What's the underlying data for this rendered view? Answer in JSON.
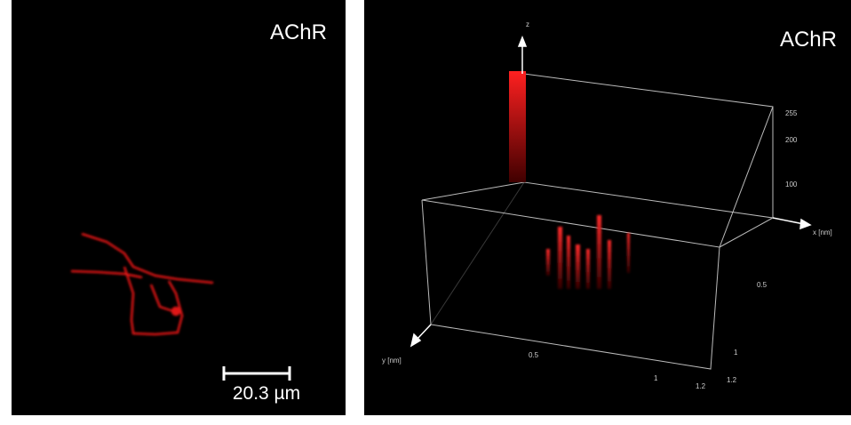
{
  "panels": [
    {
      "label": "AChR",
      "scale_bar": "20.3 µm"
    },
    {
      "label": "AChR",
      "axes": {
        "z_label": "z",
        "x_label": "x [nm]",
        "y_label": "y [nm]",
        "intensity_ticks": [
          "255",
          "200",
          "100"
        ],
        "x_ticks": [
          "0.5",
          "1",
          "1.2"
        ],
        "y_ticks": [
          "0.5",
          "1",
          "1.2"
        ]
      }
    }
  ]
}
